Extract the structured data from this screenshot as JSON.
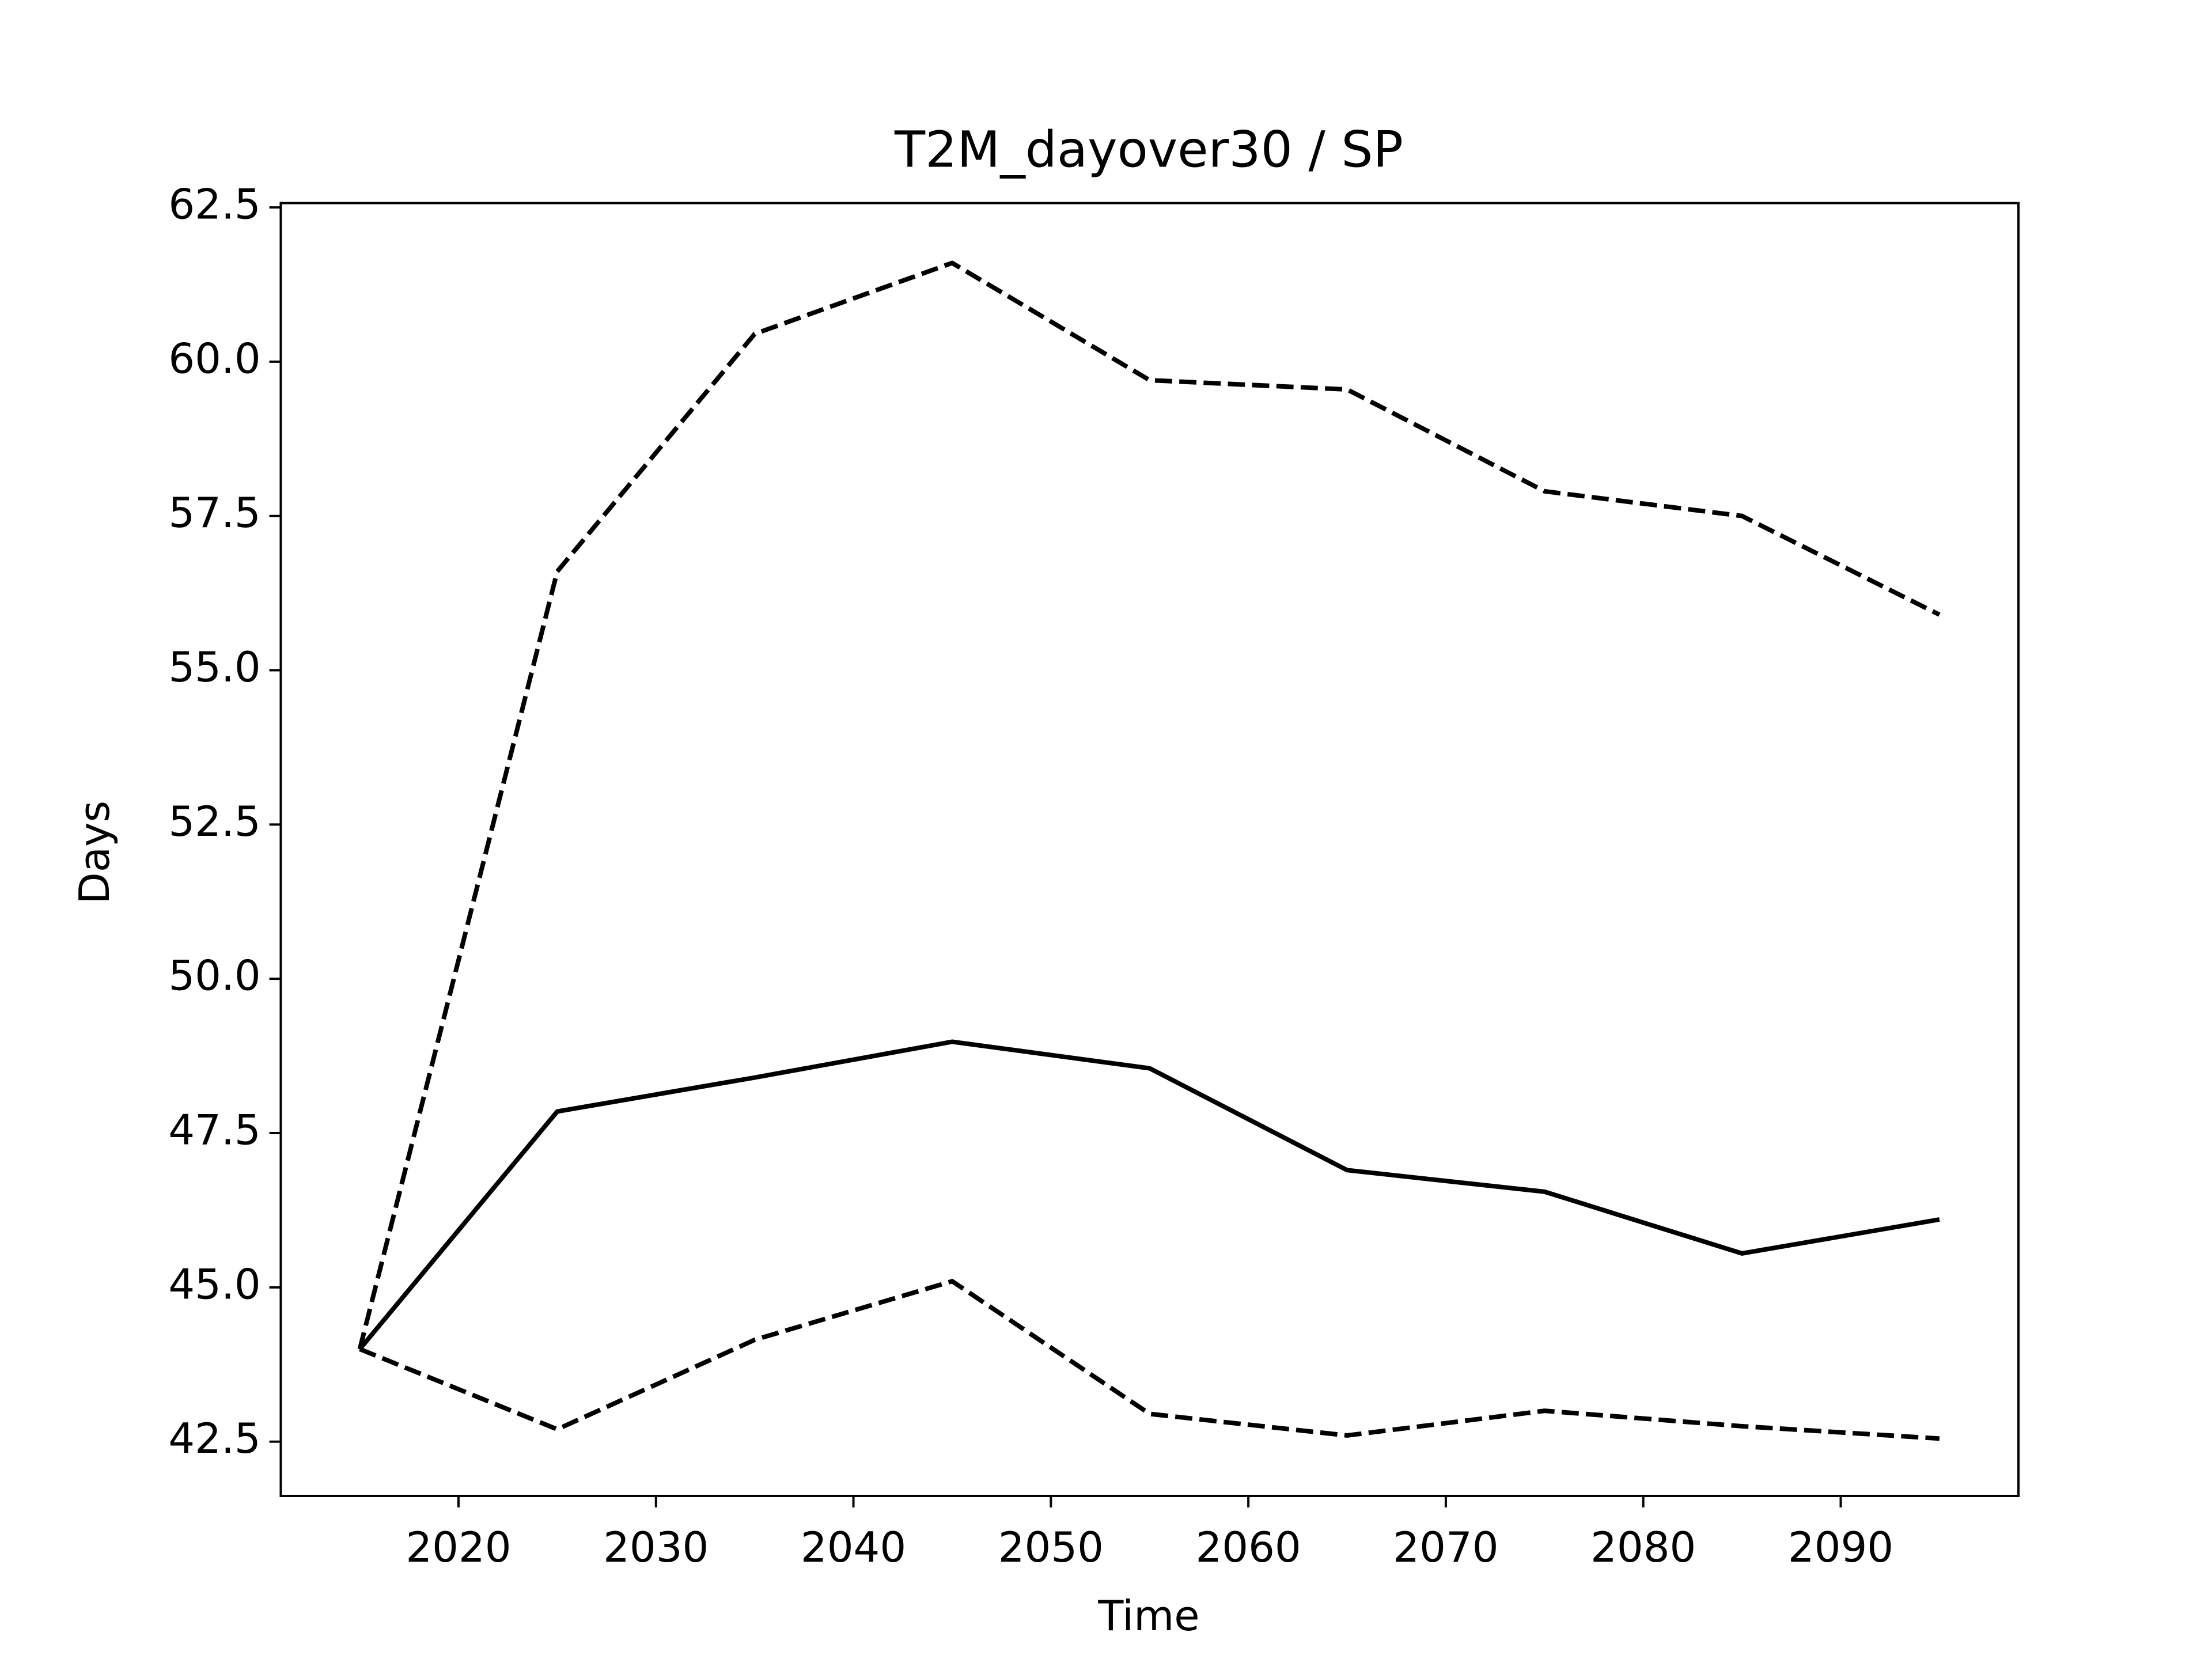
{
  "chart_data": {
    "type": "line",
    "title": "T2M_dayover30 / SP",
    "x_label": "Time",
    "y_label": "Days",
    "x": [
      2015,
      2025,
      2035,
      2045,
      2055,
      2065,
      2075,
      2085,
      2095
    ],
    "series": [
      {
        "color": "#000000",
        "linestyle": "solid",
        "values": [
          44.0,
          47.85,
          48.4,
          48.98,
          48.55,
          46.9,
          46.55,
          45.55,
          46.1
        ]
      },
      {
        "color": "#000000",
        "linestyle": "dashed",
        "values": [
          44.0,
          56.6,
          60.45,
          61.6,
          59.7,
          59.55,
          57.9,
          57.5,
          55.9
        ]
      },
      {
        "color": "#000000",
        "linestyle": "dashed",
        "values": [
          44.0,
          42.7,
          44.15,
          45.1,
          42.95,
          42.6,
          43.0,
          42.75,
          42.55
        ]
      }
    ],
    "xlim": [
      2011,
      2099
    ],
    "xticks": [
      2020,
      2030,
      2040,
      2050,
      2060,
      2070,
      2080,
      2090
    ],
    "ylim": [
      41.62,
      62.57
    ],
    "yticks": [
      42.5,
      {
        "value": 45,
        "label": "45.0"
      },
      47.5,
      {
        "value": 50,
        "label": "50.0"
      },
      52.5,
      {
        "value": 55,
        "label": "55.0"
      },
      57.5,
      {
        "value": 60,
        "label": "60.0"
      },
      62.5
    ],
    "grid": false
  }
}
